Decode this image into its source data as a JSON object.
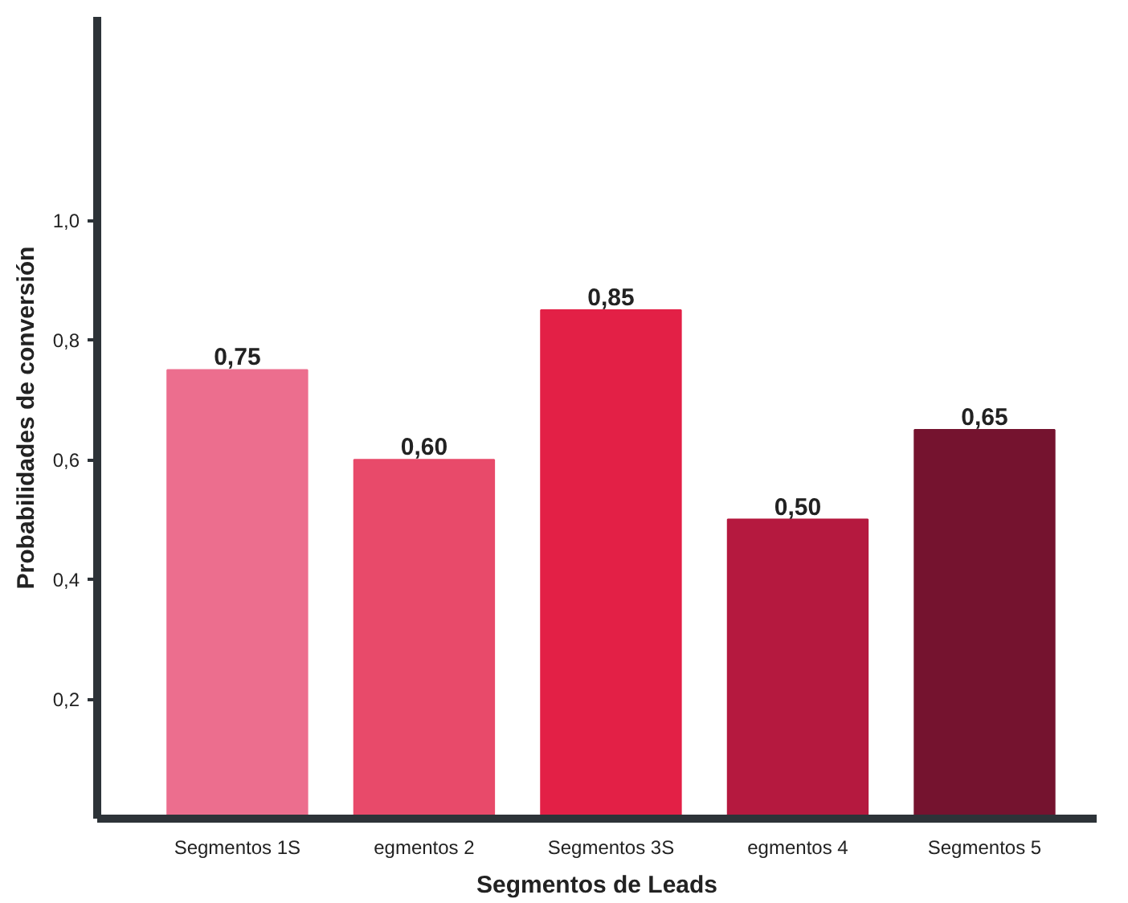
{
  "chart_data": {
    "type": "bar",
    "xlabel": "Segmentos de Leads",
    "ylabel": "Probabilidades de conversión",
    "categories": [
      "Segmentos 1S",
      "egmentos 2",
      "Segmentos 3S",
      "egmentos 4",
      "Segmentos 5"
    ],
    "values": [
      0.75,
      0.6,
      0.85,
      0.5,
      0.65
    ],
    "value_labels": [
      "0,75",
      "0,60",
      "0,85",
      "0,50",
      "0,65"
    ],
    "colors": [
      "#ec6e8e",
      "#e84a6a",
      "#e32046",
      "#b5193f",
      "#75132f"
    ],
    "ylim": [
      0,
      1.34
    ],
    "yticks": [
      {
        "value": 0.2,
        "label": "0,2"
      },
      {
        "value": 0.4,
        "label": "0,4"
      },
      {
        "value": 0.6,
        "label": "0,6"
      },
      {
        "value": 0.8,
        "label": "0,8"
      },
      {
        "value": 1.0,
        "label": "1,0"
      }
    ],
    "grid": false
  }
}
